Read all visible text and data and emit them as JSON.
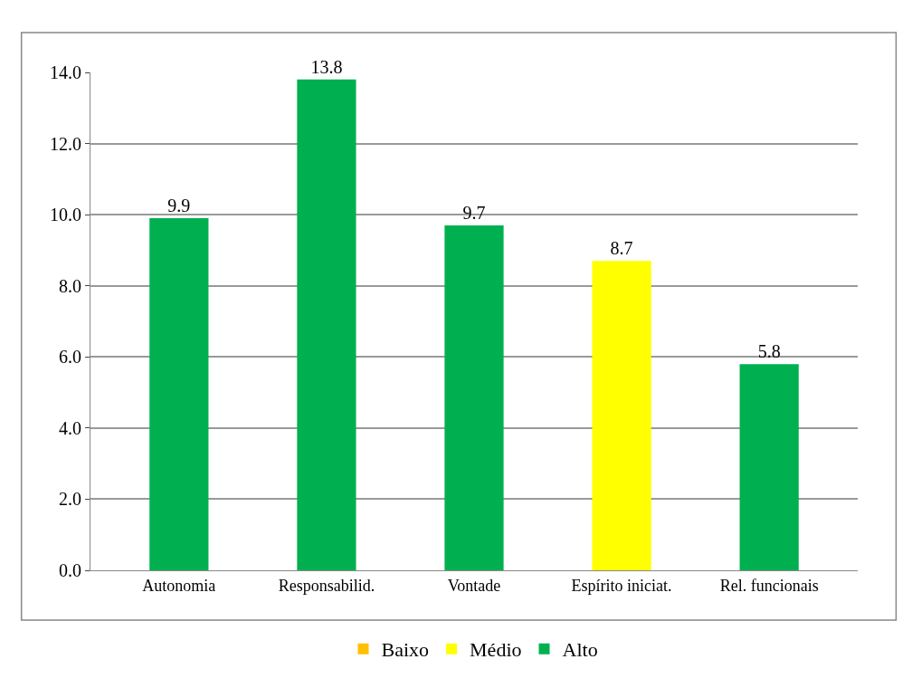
{
  "chart_data": {
    "type": "bar",
    "stacked": true,
    "categories": [
      "Autonomia",
      "Responsabilid.",
      "Vontade",
      "Espírito iniciat.",
      "Rel. funcionais"
    ],
    "series": [
      {
        "name": "Baixo",
        "color": "#ffc000",
        "values": [
          null,
          null,
          null,
          null,
          null
        ]
      },
      {
        "name": "Médio",
        "color": "#ffff00",
        "values": [
          null,
          null,
          null,
          8.7,
          null
        ]
      },
      {
        "name": "Alto",
        "color": "#00b050",
        "values": [
          9.9,
          13.8,
          9.7,
          null,
          5.8
        ]
      }
    ],
    "ylim": [
      0,
      14
    ],
    "yticks": [
      {
        "value": 0,
        "label": "0.0"
      },
      {
        "value": 2,
        "label": "2.0"
      },
      {
        "value": 4,
        "label": "4.0"
      },
      {
        "value": 6,
        "label": "6.0"
      },
      {
        "value": 8,
        "label": "8.0"
      },
      {
        "value": 10,
        "label": "10.0"
      },
      {
        "value": 12,
        "label": "12.0"
      },
      {
        "value": 14,
        "label": "14.0"
      }
    ],
    "grid": "y",
    "legend": "bottom",
    "data_labels": true
  }
}
